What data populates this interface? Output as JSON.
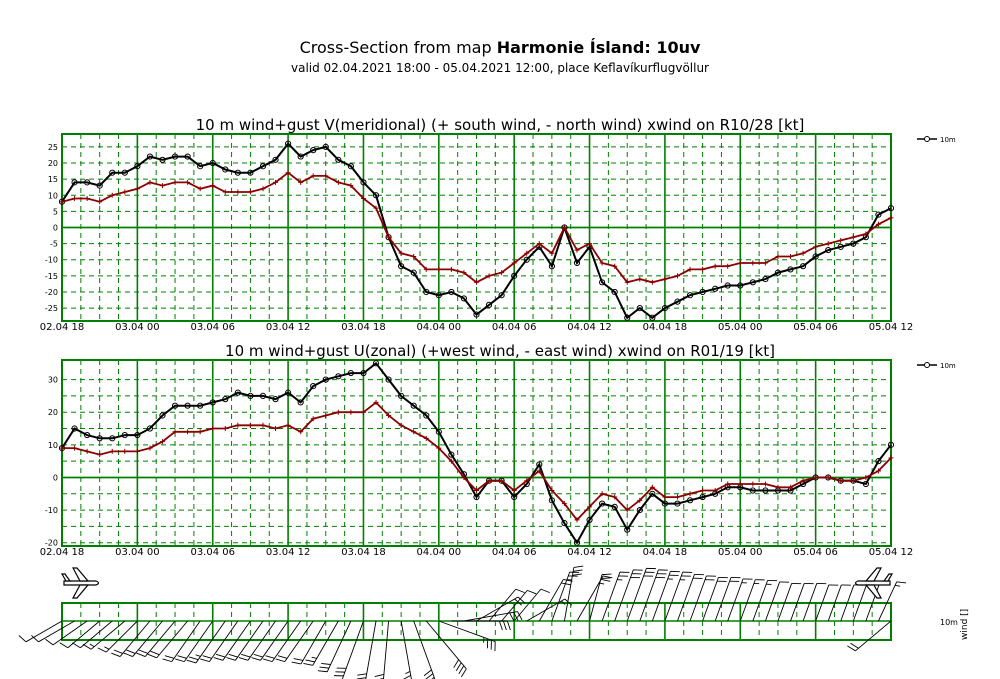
{
  "header": {
    "title_prefix": "Cross-Section from map",
    "title_bold": "Harmonie Ísland: 10uv",
    "subtitle": "valid 02.04.2021 18:00 - 05.04.2021 12:00, place Keflavíkurflugvöllur"
  },
  "colors": {
    "grid": "#008000",
    "series_10m": "#000000",
    "series_gust": "#8b0000"
  },
  "x_ticks": [
    "02.04 18",
    "03.04 00",
    "03.04 06",
    "03.04 12",
    "03.04 18",
    "04.04 00",
    "04.04 06",
    "04.04 12",
    "04.04 18",
    "05.04 00",
    "05.04 06",
    "05.04 12"
  ],
  "chart_data": [
    {
      "type": "line",
      "title": "10 m wind+gust V(meridional) (+ south wind, - north wind) xwind on R10/28 [kt]",
      "xlabel": "",
      "ylabel": "",
      "x_unit": "hours from 02.04 18",
      "xlim": [
        0,
        66
      ],
      "ylim": [
        -29,
        29
      ],
      "y_ticks": [
        25,
        20,
        15,
        10,
        5,
        0,
        -5,
        -10,
        -15,
        -20,
        -25
      ],
      "legend": "10m",
      "legend_position": "top-right",
      "x": [
        0,
        1,
        2,
        3,
        4,
        5,
        6,
        7,
        8,
        9,
        10,
        11,
        12,
        13,
        14,
        15,
        16,
        17,
        18,
        19,
        20,
        21,
        22,
        23,
        24,
        25,
        26,
        27,
        28,
        29,
        30,
        31,
        32,
        33,
        34,
        35,
        36,
        37,
        38,
        39,
        40,
        41,
        42,
        43,
        44,
        45,
        46,
        47,
        48,
        49,
        50,
        51,
        52,
        53,
        54,
        55,
        56,
        57,
        58,
        59,
        60,
        61,
        62,
        63,
        64,
        65,
        66
      ],
      "series": [
        {
          "name": "10m",
          "values": [
            8,
            14,
            14,
            13,
            17,
            17,
            19,
            22,
            21,
            22,
            22,
            19,
            20,
            18,
            17,
            17,
            19,
            21,
            26,
            22,
            24,
            25,
            21,
            19,
            14,
            10,
            -3,
            -12,
            -14,
            -20,
            -21,
            -20,
            -22,
            -27,
            -24,
            -21,
            -15,
            -10,
            -6,
            -12,
            0,
            -11,
            -6,
            -17,
            -20,
            -28,
            -25,
            -28,
            -25,
            -23,
            -21,
            -20,
            -19,
            -18,
            -18,
            -17,
            -16,
            -14,
            -13,
            -12,
            -9,
            -7,
            -6,
            -5,
            -3,
            4,
            6
          ]
        },
        {
          "name": "gust",
          "values": [
            8,
            9,
            9,
            8,
            10,
            11,
            12,
            14,
            13,
            14,
            14,
            12,
            13,
            11,
            11,
            11,
            12,
            14,
            17,
            14,
            16,
            16,
            14,
            13,
            9,
            6,
            -3,
            -8,
            -9,
            -13,
            -13,
            -13,
            -14,
            -17,
            -15,
            -14,
            -11,
            -8,
            -5,
            -8,
            0,
            -7,
            -5,
            -11,
            -12,
            -17,
            -16,
            -17,
            -16,
            -15,
            -13,
            -13,
            -12,
            -12,
            -11,
            -11,
            -11,
            -9,
            -9,
            -8,
            -6,
            -5,
            -4,
            -3,
            -2,
            1,
            3
          ]
        }
      ]
    },
    {
      "type": "line",
      "title": "10 m wind+gust U(zonal) (+west wind, - east wind) xwind on R01/19 [kt]",
      "xlabel": "",
      "ylabel": "",
      "x_unit": "hours from 02.04 18",
      "xlim": [
        0,
        66
      ],
      "ylim": [
        -21,
        36
      ],
      "y_ticks": [
        30,
        20,
        10,
        0,
        -10,
        -20
      ],
      "legend": "10m",
      "legend_position": "top-right",
      "x": [
        0,
        1,
        2,
        3,
        4,
        5,
        6,
        7,
        8,
        9,
        10,
        11,
        12,
        13,
        14,
        15,
        16,
        17,
        18,
        19,
        20,
        21,
        22,
        23,
        24,
        25,
        26,
        27,
        28,
        29,
        30,
        31,
        32,
        33,
        34,
        35,
        36,
        37,
        38,
        39,
        40,
        41,
        42,
        43,
        44,
        45,
        46,
        47,
        48,
        49,
        50,
        51,
        52,
        53,
        54,
        55,
        56,
        57,
        58,
        59,
        60,
        61,
        62,
        63,
        64,
        65,
        66
      ],
      "series": [
        {
          "name": "10m",
          "values": [
            9,
            15,
            13,
            12,
            12,
            13,
            13,
            15,
            19,
            22,
            22,
            22,
            23,
            24,
            26,
            25,
            25,
            24,
            26,
            23,
            28,
            30,
            31,
            32,
            32,
            35,
            30,
            25,
            22,
            19,
            14,
            7,
            1,
            -6,
            -1,
            -1,
            -6,
            -2,
            4,
            -7,
            -14,
            -20,
            -13,
            -8,
            -9,
            -16,
            -10,
            -5,
            -8,
            -8,
            -7,
            -6,
            -5,
            -3,
            -3,
            -4,
            -4,
            -4,
            -4,
            -2,
            0,
            0,
            -1,
            -1,
            -2,
            5,
            10
          ]
        },
        {
          "name": "gust",
          "values": [
            9,
            9,
            8,
            7,
            8,
            8,
            8,
            9,
            11,
            14,
            14,
            14,
            15,
            15,
            16,
            16,
            16,
            15,
            16,
            14,
            18,
            19,
            20,
            20,
            20,
            23,
            19,
            16,
            14,
            12,
            9,
            5,
            0,
            -4,
            -1,
            -1,
            -4,
            -1,
            2,
            -4,
            -8,
            -13,
            -9,
            -5,
            -6,
            -10,
            -7,
            -3,
            -6,
            -6,
            -5,
            -4,
            -4,
            -2,
            -2,
            -2,
            -2,
            -3,
            -3,
            -1,
            0,
            0,
            -1,
            -1,
            0,
            2,
            6
          ]
        }
      ]
    }
  ],
  "wind_barbs": {
    "label_level": "10m",
    "label_axis": "wind []",
    "speeds_kt": [
      12,
      12,
      12,
      12,
      12,
      15,
      15,
      18,
      18,
      18,
      20,
      22,
      22,
      24,
      22,
      20,
      20,
      20,
      20,
      22,
      22,
      22,
      24,
      30,
      38,
      42,
      42,
      44,
      40,
      38,
      35,
      30,
      28,
      20,
      12,
      10,
      12,
      15,
      20,
      25,
      28,
      25,
      20,
      25,
      28,
      30,
      28,
      26,
      25,
      22,
      20,
      18,
      18,
      16,
      15,
      14,
      12,
      10,
      10,
      10,
      8,
      8,
      8,
      10,
      12,
      14,
      18
    ],
    "directions_deg": [
      240,
      240,
      235,
      230,
      230,
      230,
      225,
      220,
      220,
      220,
      220,
      215,
      215,
      215,
      215,
      215,
      215,
      215,
      215,
      215,
      215,
      210,
      210,
      205,
      200,
      190,
      185,
      170,
      160,
      140,
      110,
      90,
      80,
      60,
      40,
      40,
      40,
      60,
      30,
      20,
      10,
      30,
      15,
      20,
      20,
      20,
      20,
      20,
      20,
      20,
      20,
      20,
      20,
      20,
      20,
      20,
      20,
      20,
      20,
      20,
      20,
      20,
      20,
      20,
      20,
      25,
      230
    ]
  }
}
